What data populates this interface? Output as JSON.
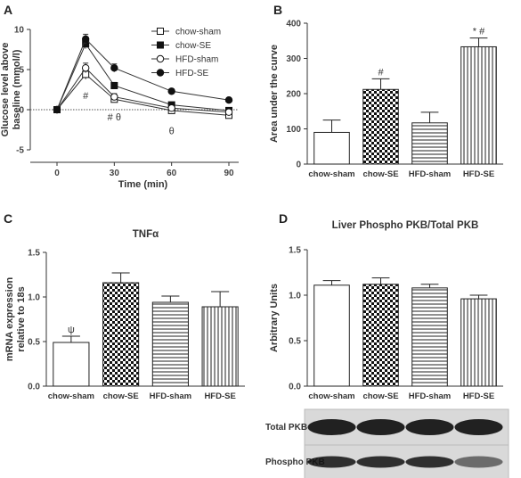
{
  "chart_data": [
    {
      "panel": "A",
      "type": "line",
      "title": "",
      "xlabel": "Time (min)",
      "ylabel": [
        "Glucose level above",
        "baseline (mmol/l)"
      ],
      "x": [
        0,
        15,
        30,
        60,
        90
      ],
      "xlim": [
        0,
        90
      ],
      "ylim": [
        -5,
        10
      ],
      "xticks": [
        "0",
        "30",
        "60",
        "90"
      ],
      "yticks": [
        "-5",
        "0",
        "5",
        "10"
      ],
      "legend_position": "top-right",
      "series": [
        {
          "name": "chow-sham",
          "marker": "square-open",
          "values": [
            0,
            4.4,
            1.3,
            -0.1,
            -0.7
          ],
          "errors": [
            0.2,
            0.6,
            0.4,
            0.3,
            0.3
          ]
        },
        {
          "name": "chow-SE",
          "marker": "square-filled",
          "values": [
            0,
            8.2,
            3.0,
            0.6,
            -0.1
          ],
          "errors": [
            0.2,
            0.6,
            0.4,
            0.3,
            0.3
          ]
        },
        {
          "name": "HFD-sham",
          "marker": "circle-open",
          "values": [
            0,
            5.2,
            1.6,
            0.2,
            -0.3
          ],
          "errors": [
            0.2,
            0.6,
            0.4,
            0.3,
            0.3
          ]
        },
        {
          "name": "HFD-SE",
          "marker": "circle-filled",
          "values": [
            0,
            8.8,
            5.2,
            2.3,
            1.2
          ],
          "errors": [
            0.2,
            0.6,
            0.5,
            0.3,
            0.3
          ]
        }
      ],
      "annotations": [
        {
          "text": "#",
          "x": 15,
          "y": 1.8
        },
        {
          "text": "# θ",
          "x": 30,
          "y": -0.9
        },
        {
          "text": "θ",
          "x": 60,
          "y": -2.6
        }
      ],
      "reference_line": 0
    },
    {
      "panel": "B",
      "type": "bar",
      "title": "",
      "xlabel": "",
      "ylabel": "Area under the curve",
      "categories": [
        "chow-sham",
        "chow-SE",
        "HFD-sham",
        "HFD-SE"
      ],
      "values": [
        90,
        212,
        117,
        333
      ],
      "errors": [
        35,
        30,
        30,
        25
      ],
      "patterns": [
        "white",
        "checker",
        "hlines",
        "vlines"
      ],
      "ylim": [
        0,
        400
      ],
      "yticks": [
        "0",
        "100",
        "200",
        "300",
        "400"
      ],
      "annotations": [
        {
          "text": "#",
          "category": 1
        },
        {
          "text": "* #",
          "category": 3
        }
      ]
    },
    {
      "panel": "C",
      "type": "bar",
      "title": "TNFα",
      "xlabel": "",
      "ylabel": [
        "mRNA expression",
        "relative to 18s"
      ],
      "categories": [
        "chow-sham",
        "chow-SE",
        "HFD-sham",
        "HFD-SE"
      ],
      "values": [
        0.49,
        1.16,
        0.94,
        0.89
      ],
      "errors": [
        0.07,
        0.11,
        0.07,
        0.17
      ],
      "patterns": [
        "white",
        "checker",
        "hlines",
        "vlines"
      ],
      "ylim": [
        0,
        1.5
      ],
      "yticks": [
        "0.0",
        "0.5",
        "1.0",
        "1.5"
      ],
      "annotations": [
        {
          "text": "ψ",
          "category": 0
        }
      ]
    },
    {
      "panel": "D",
      "type": "bar",
      "title": "Liver Phospho PKB/Total PKB",
      "xlabel": "",
      "ylabel": "Arbitrary Units",
      "categories": [
        "chow-sham",
        "chow-SE",
        "HFD-sham",
        "HFD-SE"
      ],
      "values": [
        1.11,
        1.12,
        1.08,
        0.96
      ],
      "errors": [
        0.05,
        0.07,
        0.04,
        0.04
      ],
      "patterns": [
        "white",
        "checker",
        "hlines",
        "vlines"
      ],
      "ylim": [
        0,
        1.5
      ],
      "yticks": [
        "0.0",
        "0.5",
        "1.0",
        "1.5"
      ],
      "blot_labels": [
        "Total PKB",
        "Phospho PKB"
      ]
    }
  ]
}
